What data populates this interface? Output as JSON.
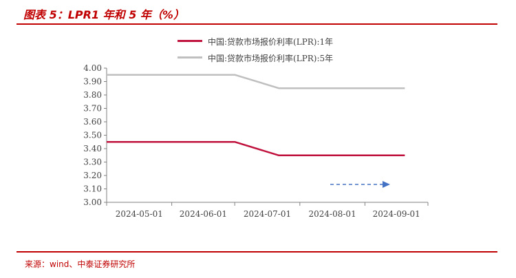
{
  "figure": {
    "title": "图表 5：LPR1 年和 5 年（%）",
    "source": "来源：wind、中泰证券研究所"
  },
  "colors": {
    "accent_red": "#c00000",
    "series_1y": "#c0103c",
    "series_5y": "#bfbfbf",
    "arrow_blue": "#4472c4"
  },
  "chart_data": {
    "type": "line",
    "x": [
      "2024-05-01",
      "2024-05-20",
      "2024-06-01",
      "2024-06-20",
      "2024-07-01",
      "2024-07-22",
      "2024-08-01",
      "2024-08-20",
      "2024-09-01",
      "2024-09-20"
    ],
    "x_tick_labels": [
      "2024-05-01",
      "2024-06-01",
      "2024-07-01",
      "2024-08-01",
      "2024-09-01"
    ],
    "series": [
      {
        "name": "中国:贷款市场报价利率(LPR):1年",
        "values": [
          3.45,
          3.45,
          3.45,
          3.45,
          3.45,
          3.35,
          3.35,
          3.35,
          3.35,
          3.35
        ],
        "color": "#c0103c"
      },
      {
        "name": "中国:贷款市场报价利率(LPR):5年",
        "values": [
          3.95,
          3.95,
          3.95,
          3.95,
          3.95,
          3.85,
          3.85,
          3.85,
          3.85,
          3.85
        ],
        "color": "#bfbfbf"
      }
    ],
    "y_ticks": [
      "4.00",
      "3.90",
      "3.80",
      "3.70",
      "3.60",
      "3.50",
      "3.40",
      "3.30",
      "3.20",
      "3.10",
      "3.00"
    ],
    "ylim": [
      3.0,
      4.0
    ],
    "grid": false,
    "legend_position": "top",
    "annotation": "dashed-arrow-right"
  }
}
